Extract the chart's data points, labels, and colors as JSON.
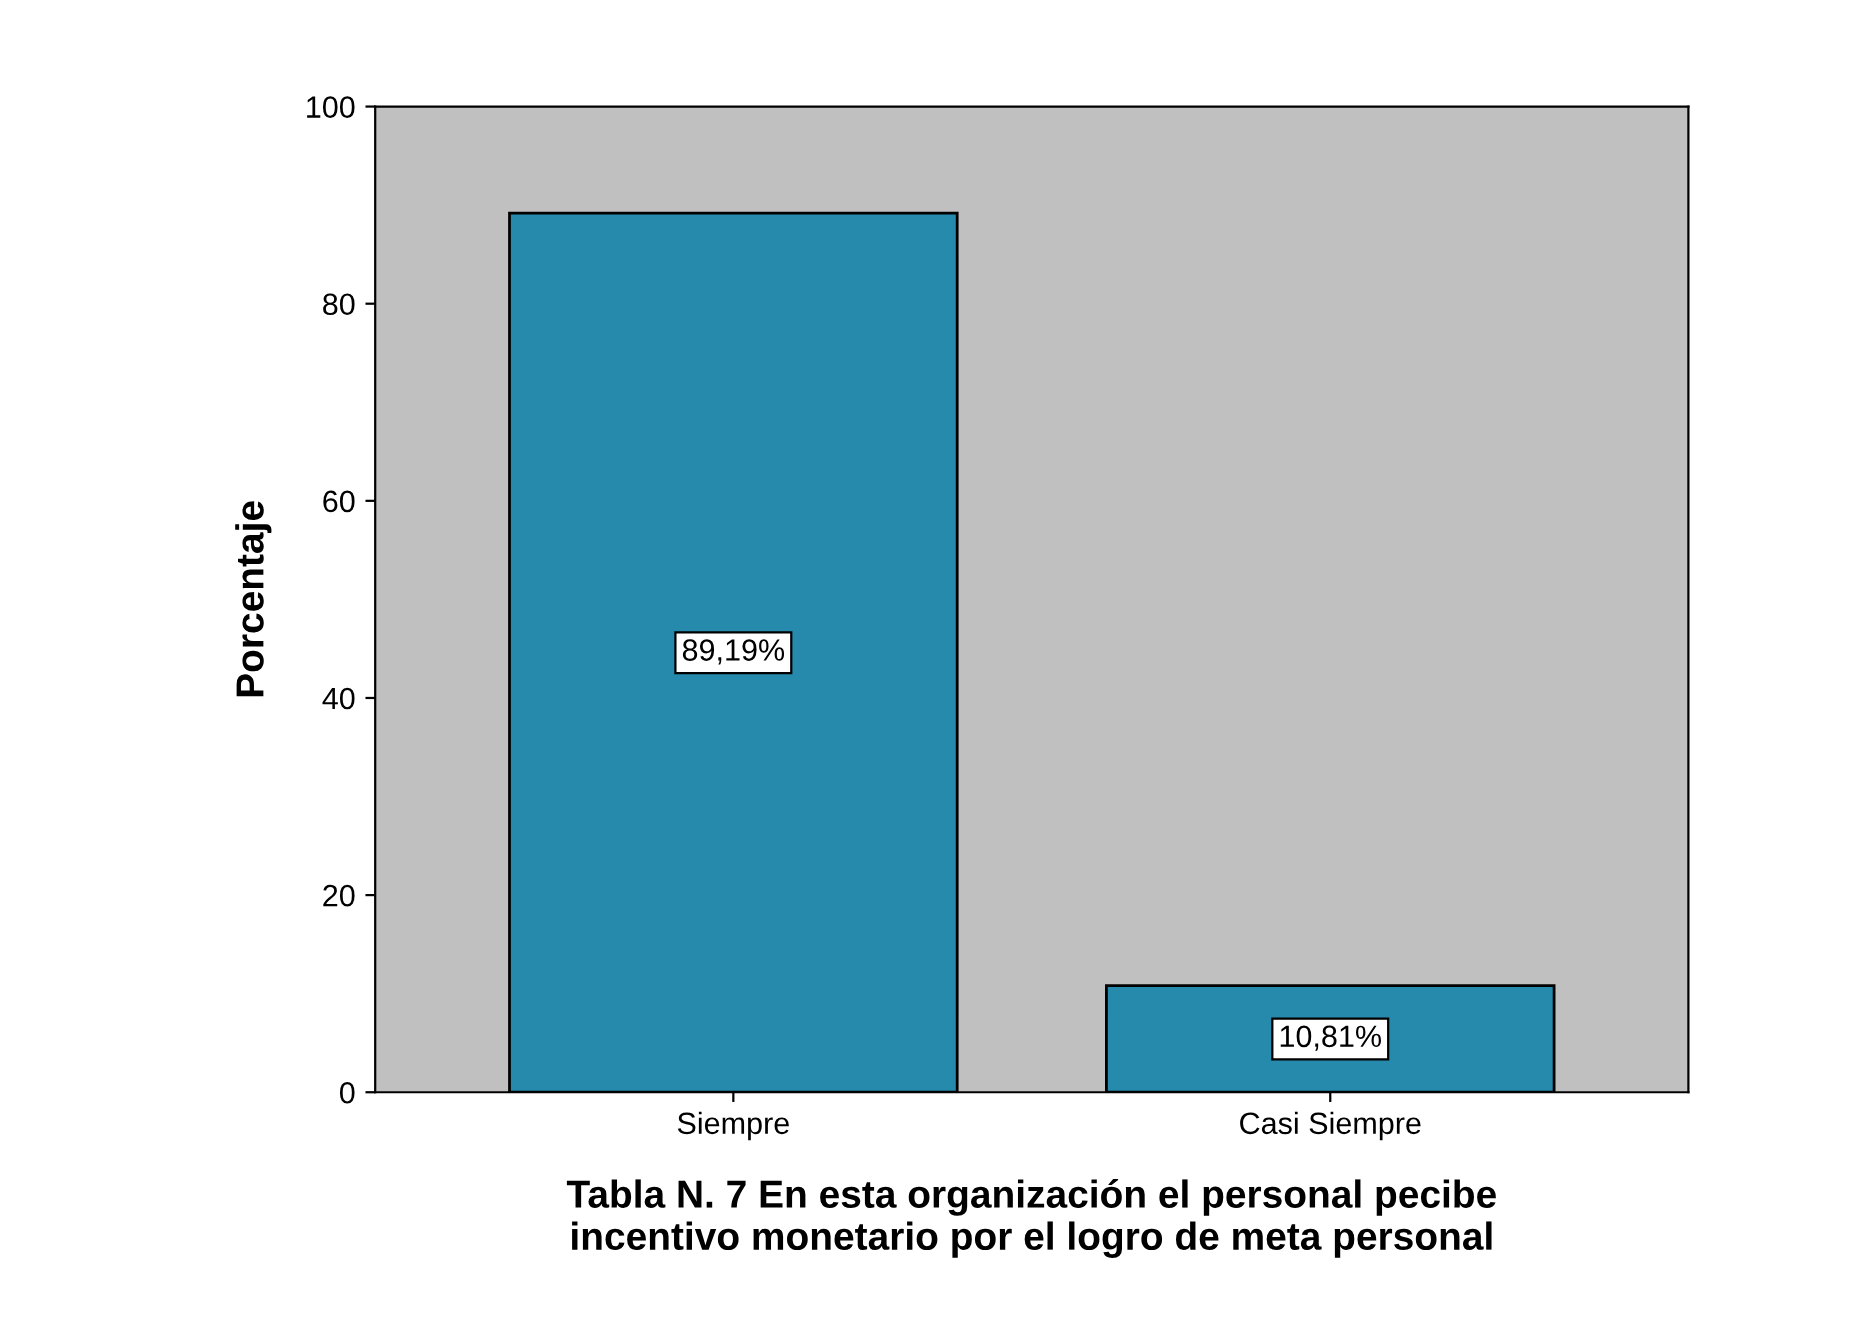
{
  "chart_data": {
    "type": "bar",
    "xlabel": "Tabla N. 7 En esta organización el personal pecibe\nincentivo monetario por el logro de meta personal",
    "ylabel": "Porcentaje",
    "categories": [
      "Siempre",
      "Casi Siempre"
    ],
    "values": [
      89.19,
      10.81
    ],
    "value_labels": [
      "89,19%",
      "10,81%"
    ],
    "color": "#268aad",
    "ylim": [
      0,
      100
    ],
    "yticks": [
      0,
      20,
      40,
      60,
      80,
      100
    ],
    "grid": false
  }
}
